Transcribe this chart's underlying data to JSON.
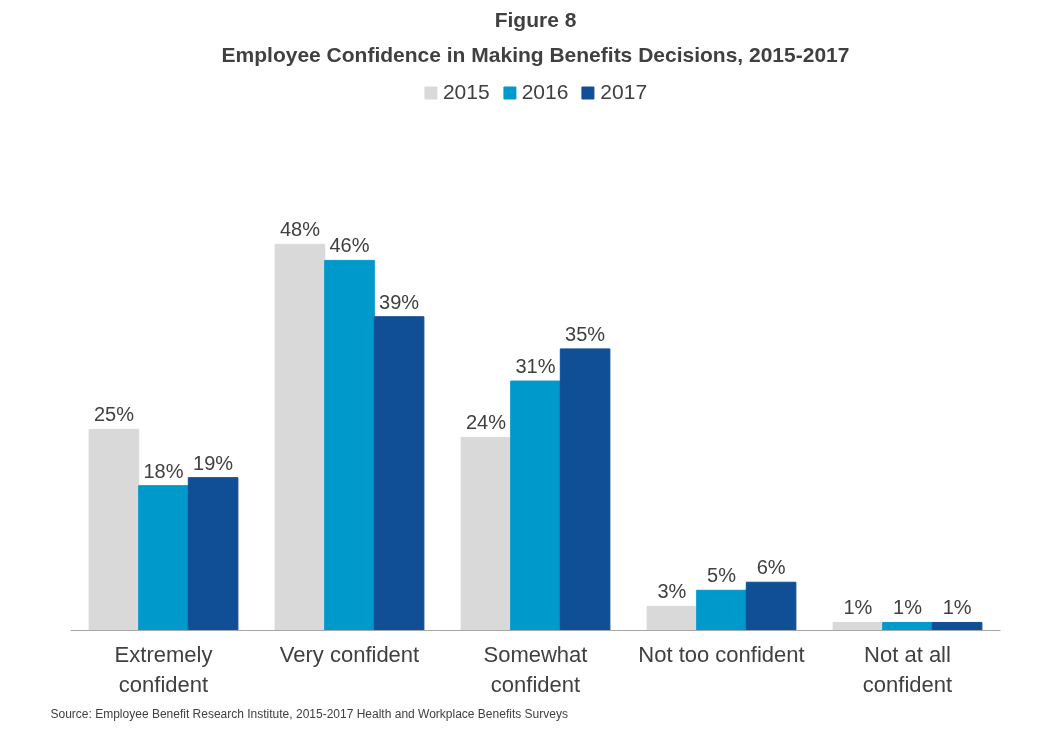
{
  "chart_data": {
    "type": "bar",
    "title": "Figure 8",
    "subtitle": "Employee Confidence in Making Benefits Decisions, 2015-2017",
    "categories": [
      "Extremely confident",
      "Very confident",
      "Somewhat confident",
      "Not too confident",
      "Not at all confident"
    ],
    "series": [
      {
        "name": "2015",
        "color": "#d9d9d9",
        "values": [
          25,
          48,
          24,
          3,
          1
        ],
        "value_labels": [
          "25%",
          "48%",
          "24%",
          "3%",
          "1%"
        ]
      },
      {
        "name": "2016",
        "color": "#0099cc",
        "values": [
          18,
          46,
          31,
          5,
          1
        ],
        "value_labels": [
          "18%",
          "46%",
          "31%",
          "5%",
          "1%"
        ]
      },
      {
        "name": "2017",
        "color": "#104e96",
        "values": [
          19,
          39,
          35,
          6,
          1
        ],
        "value_labels": [
          "19%",
          "39%",
          "35%",
          "6%",
          "1%"
        ]
      }
    ],
    "legend": "top",
    "grid": false,
    "tick_labels": "x",
    "annotations": [
      "Source:  Employee Benefit Research Institute, 2015-2017 Health and Workplace Benefits Surveys"
    ]
  }
}
